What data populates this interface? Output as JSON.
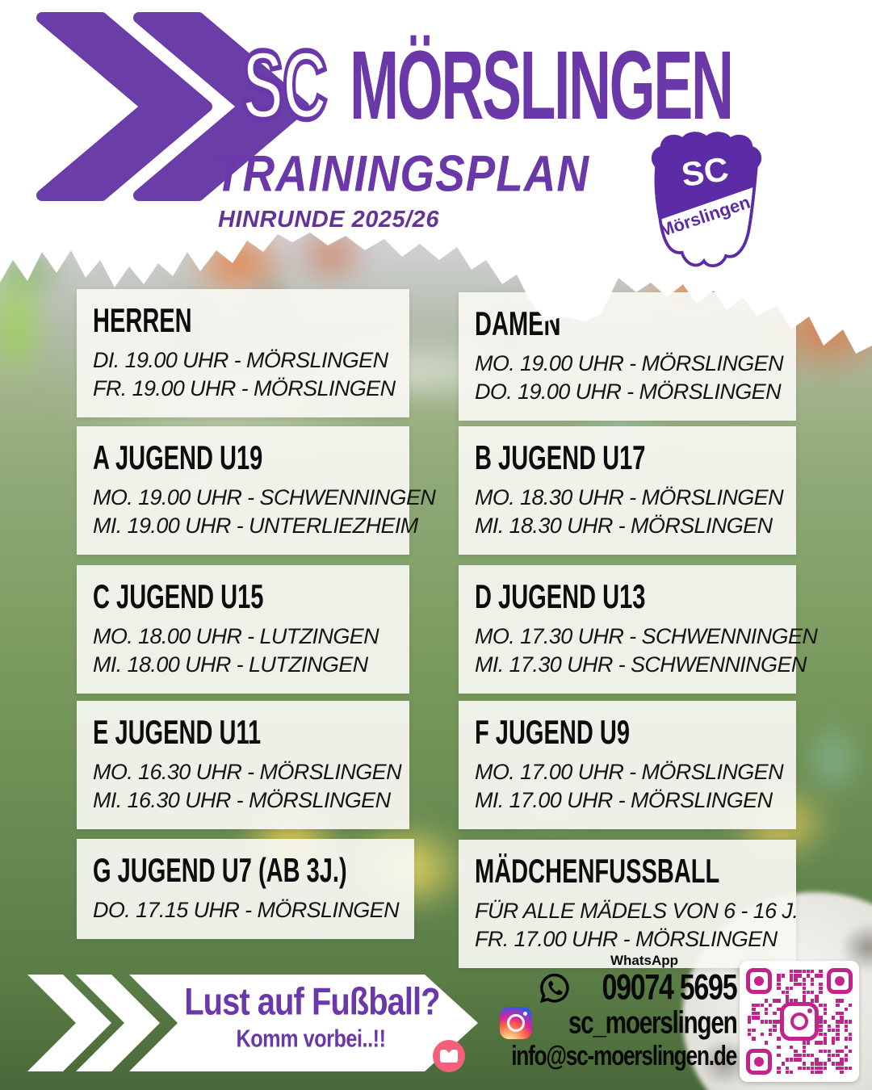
{
  "accent_purple": "#6a38a8",
  "badge_purple": "#5b2ca6",
  "qr_magenta": "#c1258c",
  "email_pink": "#f2607c",
  "header": {
    "club_prefix": "SC",
    "club_name": "MÖRSLINGEN",
    "title": "TRAININGSPLAN",
    "subtitle": "HINRUNDE 2025/26",
    "badge": {
      "top_text": "SC",
      "band_text": "Mörslingen"
    }
  },
  "teams": [
    {
      "name": "HERREN",
      "lines": [
        "DI. 19.00 UHR - MÖRSLINGEN",
        "FR. 19.00 UHR - MÖRSLINGEN"
      ]
    },
    {
      "name": "DAMEN",
      "lines": [
        "MO. 19.00 UHR - MÖRSLINGEN",
        "DO. 19.00 UHR - MÖRSLINGEN"
      ]
    },
    {
      "name": "A JUGEND U19",
      "lines": [
        "MO. 19.00 UHR - SCHWENNINGEN",
        "MI. 19.00 UHR - UNTERLIEZHEIM"
      ]
    },
    {
      "name": "B JUGEND U17",
      "lines": [
        "MO. 18.30 UHR - MÖRSLINGEN",
        "MI. 18.30 UHR - MÖRSLINGEN"
      ]
    },
    {
      "name": "C JUGEND U15",
      "lines": [
        "MO. 18.00 UHR - LUTZINGEN",
        "MI. 18.00 UHR - LUTZINGEN"
      ]
    },
    {
      "name": "D JUGEND U13",
      "lines": [
        "MO. 17.30 UHR - SCHWENNINGEN",
        "MI. 17.30 UHR - SCHWENNINGEN"
      ]
    },
    {
      "name": "E JUGEND U11",
      "lines": [
        "MO. 16.30 UHR - MÖRSLINGEN",
        "MI. 16.30 UHR - MÖRSLINGEN"
      ]
    },
    {
      "name": "F JUGEND U9",
      "lines": [
        "MO. 17.00 UHR - MÖRSLINGEN",
        "MI. 17.00 UHR - MÖRSLINGEN"
      ]
    },
    {
      "name": "G JUGEND U7 (AB 3J.)",
      "lines": [
        "DO. 17.15 UHR - MÖRSLINGEN"
      ]
    },
    {
      "name": "MÄDCHENFUSSBALL",
      "lines": [
        "FÜR ALLE MÄDELS VON 6 - 16 J.",
        "FR. 17.00 UHR - MÖRSLINGEN"
      ]
    }
  ],
  "cta": {
    "line1": "Lust auf Fußball?",
    "line2": "Komm vorbei..!!"
  },
  "contact": {
    "whatsapp_label": "WhatsApp",
    "phone": "09074 5695",
    "instagram": "sc_moerslingen",
    "email": "info@sc-moerslingen.de"
  },
  "icons": {
    "whatsapp": "whatsapp-icon",
    "instagram": "instagram-icon",
    "email": "email-icon",
    "qr": "instagram-qr-code",
    "chevrons": "double-chevron-icon"
  }
}
